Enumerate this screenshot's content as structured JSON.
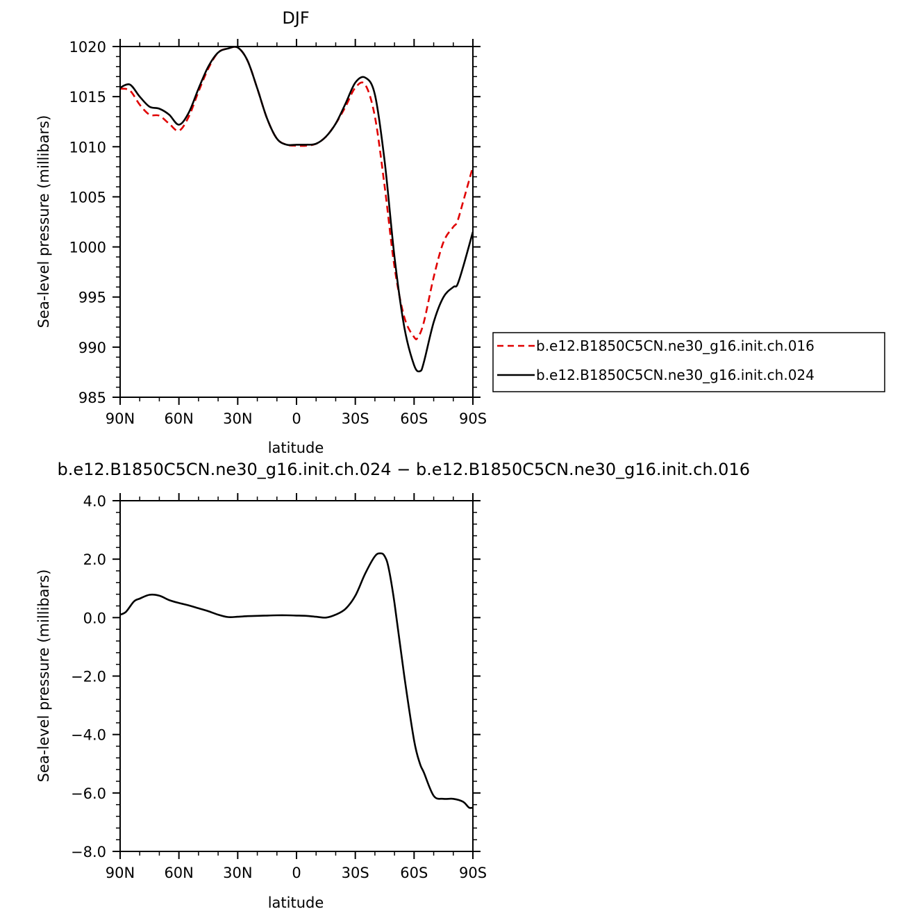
{
  "chart_data": [
    {
      "type": "line",
      "title": "DJF",
      "xlabel": "latitude",
      "ylabel": "Sea-level pressure (millibars)",
      "xlim": [
        90,
        -90
      ],
      "ylim": [
        985,
        1020
      ],
      "x_ticks": [
        {
          "value": 90,
          "label": "90N"
        },
        {
          "value": 60,
          "label": "60N"
        },
        {
          "value": 30,
          "label": "30N"
        },
        {
          "value": 0,
          "label": "0"
        },
        {
          "value": -30,
          "label": "30S"
        },
        {
          "value": -60,
          "label": "60S"
        },
        {
          "value": -90,
          "label": "90S"
        }
      ],
      "y_ticks": [
        {
          "value": 1020,
          "label": "1020"
        },
        {
          "value": 1015,
          "label": "1015"
        },
        {
          "value": 1010,
          "label": "1010"
        },
        {
          "value": 1005,
          "label": "1005"
        },
        {
          "value": 1000,
          "label": "1000"
        },
        {
          "value": 995,
          "label": "995"
        },
        {
          "value": 990,
          "label": "990"
        },
        {
          "value": 985,
          "label": "985"
        }
      ],
      "legend_position": "right",
      "series": [
        {
          "name": "b.e12.B1850C5CN.ne30_g16.init.ch.016",
          "color": "#e00000",
          "dash": "dashed",
          "x": [
            90,
            85,
            80,
            75,
            70,
            65,
            60,
            55,
            50,
            45,
            40,
            35,
            30,
            25,
            20,
            15,
            10,
            5,
            0,
            -5,
            -10,
            -15,
            -20,
            -25,
            -30,
            -35,
            -40,
            -45,
            -50,
            -55,
            -60,
            -62,
            -65,
            -70,
            -75,
            -80,
            -82,
            -85,
            -90
          ],
          "y": [
            1015.8,
            1015.6,
            1014.2,
            1013.2,
            1013.1,
            1012.3,
            1011.6,
            1013.0,
            1015.5,
            1017.8,
            1019.4,
            1019.8,
            1019.9,
            1018.6,
            1015.8,
            1012.8,
            1010.8,
            1010.2,
            1010.1,
            1010.1,
            1010.3,
            1011.0,
            1012.3,
            1014.0,
            1015.9,
            1016.2,
            1013.0,
            1006.0,
            998.0,
            993.0,
            991.0,
            991.0,
            992.5,
            997.0,
            1000.5,
            1002.0,
            1002.5,
            1004.5,
            1008.0
          ]
        },
        {
          "name": "b.e12.B1850C5CN.ne30_g16.init.ch.024",
          "color": "#000000",
          "dash": "solid",
          "x": [
            90,
            85,
            80,
            75,
            70,
            65,
            60,
            55,
            50,
            45,
            40,
            35,
            30,
            25,
            20,
            15,
            10,
            5,
            0,
            -5,
            -10,
            -15,
            -20,
            -25,
            -30,
            -35,
            -40,
            -45,
            -50,
            -55,
            -60,
            -63,
            -65,
            -70,
            -75,
            -80,
            -82,
            -85,
            -90
          ],
          "y": [
            1015.9,
            1016.2,
            1015.0,
            1014.0,
            1013.8,
            1013.2,
            1012.2,
            1013.4,
            1015.8,
            1018.0,
            1019.4,
            1019.8,
            1019.9,
            1018.6,
            1015.8,
            1012.8,
            1010.8,
            1010.2,
            1010.2,
            1010.2,
            1010.3,
            1011.0,
            1012.3,
            1014.3,
            1016.4,
            1016.9,
            1015.2,
            1008.5,
            999.0,
            992.0,
            988.2,
            987.6,
            988.5,
            992.5,
            995.0,
            996.0,
            996.2,
            998.0,
            1001.5
          ]
        }
      ]
    },
    {
      "type": "line",
      "title": "b.e12.B1850C5CN.ne30_g16.init.ch.024 − b.e12.B1850C5CN.ne30_g16.init.ch.016",
      "xlabel": "latitude",
      "ylabel": "Sea-level pressure (millibars)",
      "xlim": [
        90,
        -90
      ],
      "ylim": [
        -8,
        4
      ],
      "x_ticks": [
        {
          "value": 90,
          "label": "90N"
        },
        {
          "value": 60,
          "label": "60N"
        },
        {
          "value": 30,
          "label": "30N"
        },
        {
          "value": 0,
          "label": "0"
        },
        {
          "value": -30,
          "label": "30S"
        },
        {
          "value": -60,
          "label": "60S"
        },
        {
          "value": -90,
          "label": "90S"
        }
      ],
      "y_ticks": [
        {
          "value": 4,
          "label": "4.0"
        },
        {
          "value": 2,
          "label": "2.0"
        },
        {
          "value": 0,
          "label": "0.0"
        },
        {
          "value": -2,
          "label": "−2.0"
        },
        {
          "value": -4,
          "label": "−4.0"
        },
        {
          "value": -6,
          "label": "−6.0"
        },
        {
          "value": -8,
          "label": "−8.0"
        }
      ],
      "series": [
        {
          "color": "#000000",
          "dash": "solid",
          "x": [
            90,
            87,
            83,
            80,
            75,
            70,
            65,
            60,
            55,
            50,
            45,
            40,
            35,
            30,
            25,
            20,
            15,
            10,
            5,
            0,
            -5,
            -10,
            -15,
            -20,
            -25,
            -30,
            -35,
            -40,
            -43,
            -45,
            -47,
            -50,
            -55,
            -60,
            -63,
            -65,
            -70,
            -75,
            -80,
            -85,
            -88,
            -90
          ],
          "y": [
            0.1,
            0.2,
            0.55,
            0.65,
            0.78,
            0.75,
            0.6,
            0.5,
            0.42,
            0.32,
            0.22,
            0.1,
            0.02,
            0.03,
            0.05,
            0.06,
            0.07,
            0.08,
            0.08,
            0.07,
            0.06,
            0.03,
            0.0,
            0.1,
            0.3,
            0.75,
            1.5,
            2.1,
            2.2,
            2.1,
            1.7,
            0.5,
            -2.0,
            -4.2,
            -5.0,
            -5.3,
            -6.1,
            -6.2,
            -6.2,
            -6.3,
            -6.5,
            -6.5
          ]
        }
      ]
    }
  ]
}
